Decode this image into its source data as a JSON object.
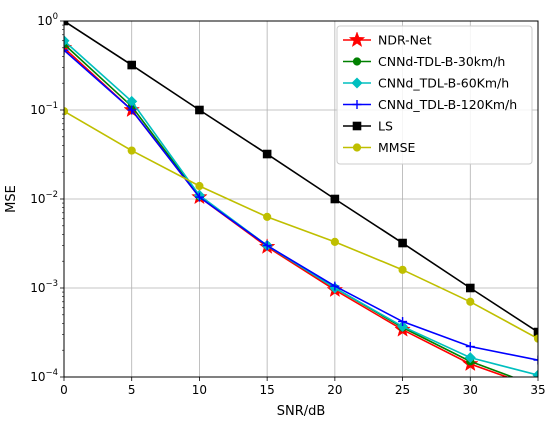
{
  "chart_data": {
    "type": "line",
    "title": "",
    "xlabel": "SNR/dB",
    "ylabel": "MSE",
    "xlim": [
      0,
      35
    ],
    "ylim": [
      0.0001,
      1
    ],
    "yscale": "log",
    "grid": true,
    "legend_position": "top-right",
    "x_ticks": [
      {
        "value": 0,
        "label": "0"
      },
      {
        "value": 5,
        "label": "5"
      },
      {
        "value": 10,
        "label": "10"
      },
      {
        "value": 15,
        "label": "15"
      },
      {
        "value": 20,
        "label": "20"
      },
      {
        "value": 25,
        "label": "25"
      },
      {
        "value": 30,
        "label": "30"
      },
      {
        "value": 35,
        "label": "35"
      }
    ],
    "y_ticks": [
      {
        "value": 1,
        "base": "10",
        "exp": "0"
      },
      {
        "value": 0.1,
        "base": "10",
        "exp": "−1"
      },
      {
        "value": 0.01,
        "base": "10",
        "exp": "−2"
      },
      {
        "value": 0.001,
        "base": "10",
        "exp": "−3"
      },
      {
        "value": 0.0001,
        "base": "10",
        "exp": "−4"
      }
    ],
    "x": [
      0,
      5,
      10,
      15,
      20,
      25,
      30,
      35
    ],
    "series": [
      {
        "name": "NDR-Net",
        "color": "#ff0000",
        "marker": "star",
        "values": [
          0.5,
          0.1,
          0.0105,
          0.0029,
          0.00095,
          0.00034,
          0.00014,
          7.5e-05
        ]
      },
      {
        "name": "CNNd-TDL-B-30km/h",
        "color": "#008000",
        "marker": "circle",
        "values": [
          0.55,
          0.11,
          0.0107,
          0.003,
          0.001,
          0.00036,
          0.00015,
          7.8e-05
        ]
      },
      {
        "name": "CNNd_TDL-B-60Km/h",
        "color": "#00bfbf",
        "marker": "diamond",
        "values": [
          0.6,
          0.125,
          0.011,
          0.003,
          0.001,
          0.00037,
          0.000165,
          0.000105
        ]
      },
      {
        "name": "CNNd_TDL-B-120Km/h",
        "color": "#0000ff",
        "marker": "plus",
        "values": [
          0.47,
          0.1,
          0.0105,
          0.003,
          0.00105,
          0.00042,
          0.00022,
          0.000155
        ]
      },
      {
        "name": "LS",
        "color": "#000000",
        "marker": "square",
        "values": [
          1.0,
          0.32,
          0.1,
          0.032,
          0.01,
          0.0032,
          0.001,
          0.00032
        ]
      },
      {
        "name": "MMSE",
        "color": "#bfbf00",
        "marker": "circle",
        "values": [
          0.097,
          0.035,
          0.014,
          0.0063,
          0.0033,
          0.0016,
          0.0007,
          0.00027
        ]
      }
    ]
  }
}
